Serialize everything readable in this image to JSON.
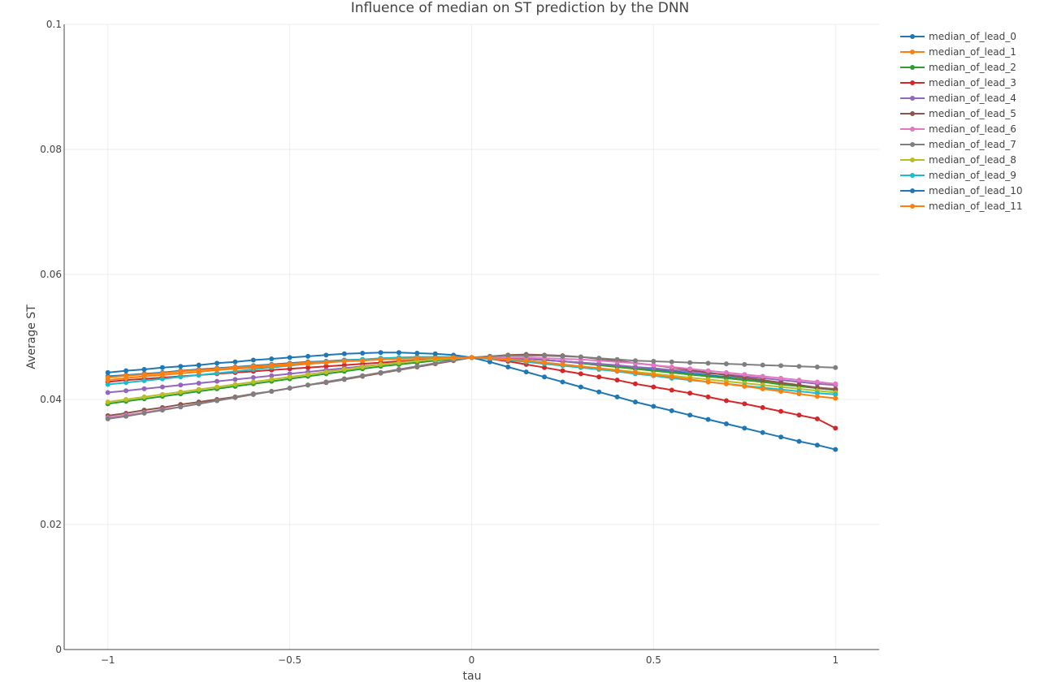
{
  "chart_data": {
    "type": "line",
    "title": "Influence of median on ST prediction by the DNN",
    "xlabel": "tau",
    "ylabel": "Average ST",
    "xlim": [
      -1.12,
      1.12
    ],
    "ylim": [
      0,
      0.1
    ],
    "xticks": [
      -1,
      -0.5,
      0,
      0.5,
      1
    ],
    "xtick_labels": [
      "−1",
      "−0.5",
      "0",
      "0.5",
      "1"
    ],
    "yticks": [
      0,
      0.02,
      0.04,
      0.06,
      0.08,
      0.1
    ],
    "ytick_labels": [
      "0",
      "0.02",
      "0.04",
      "0.06",
      "0.08",
      "0.1"
    ],
    "grid": true,
    "legend": "top-right",
    "x": [
      -1,
      -0.95,
      -0.9,
      -0.85,
      -0.8,
      -0.75,
      -0.7,
      -0.65,
      -0.6,
      -0.55,
      -0.5,
      -0.45,
      -0.4,
      -0.35,
      -0.3,
      -0.25,
      -0.2,
      -0.15,
      -0.1,
      -0.05,
      0,
      0.05,
      0.1,
      0.15,
      0.2,
      0.25,
      0.3,
      0.35,
      0.4,
      0.45,
      0.5,
      0.55,
      0.6,
      0.65,
      0.7,
      0.75,
      0.8,
      0.85,
      0.9,
      0.95,
      1
    ],
    "series": [
      {
        "name": "median_of_lead_0",
        "color": "#1f77b4",
        "values": [
          0.0437,
          0.0439,
          0.0441,
          0.0443,
          0.0446,
          0.0448,
          0.045,
          0.0452,
          0.0454,
          0.0456,
          0.0458,
          0.046,
          0.0461,
          0.0463,
          0.0464,
          0.0465,
          0.0466,
          0.0467,
          0.0467,
          0.0467,
          0.0467,
          0.0467,
          0.0466,
          0.0465,
          0.0463,
          0.0461,
          0.0459,
          0.0457,
          0.0454,
          0.0451,
          0.0448,
          0.0445,
          0.0442,
          0.0439,
          0.0436,
          0.0432,
          0.0429,
          0.0425,
          0.0422,
          0.0418,
          0.0415
        ]
      },
      {
        "name": "median_of_lead_1",
        "color": "#ff7f0e",
        "values": [
          0.0435,
          0.0438,
          0.044,
          0.0442,
          0.0445,
          0.0447,
          0.0449,
          0.0451,
          0.0453,
          0.0455,
          0.0457,
          0.0459,
          0.046,
          0.0462,
          0.0463,
          0.0464,
          0.0465,
          0.0466,
          0.0466,
          0.0467,
          0.0467,
          0.0467,
          0.0466,
          0.0465,
          0.0463,
          0.0461,
          0.0458,
          0.0455,
          0.0452,
          0.0449,
          0.0446,
          0.0443,
          0.044,
          0.0437,
          0.0434,
          0.0431,
          0.0428,
          0.0425,
          0.0422,
          0.0419,
          0.0417
        ]
      },
      {
        "name": "median_of_lead_2",
        "color": "#2ca02c",
        "values": [
          0.0393,
          0.0397,
          0.0401,
          0.0405,
          0.0409,
          0.0413,
          0.0417,
          0.0421,
          0.0425,
          0.0429,
          0.0433,
          0.0437,
          0.0441,
          0.0445,
          0.0449,
          0.0453,
          0.0456,
          0.0459,
          0.0462,
          0.0465,
          0.0467,
          0.0467,
          0.0466,
          0.0465,
          0.0463,
          0.0461,
          0.0458,
          0.0455,
          0.0452,
          0.0449,
          0.0446,
          0.0443,
          0.044,
          0.0437,
          0.0434,
          0.0431,
          0.0428,
          0.0424,
          0.0421,
          0.0418,
          0.0415
        ]
      },
      {
        "name": "median_of_lead_3",
        "color": "#d62728",
        "values": [
          0.0428,
          0.0431,
          0.0433,
          0.0435,
          0.0437,
          0.0439,
          0.0441,
          0.0443,
          0.0445,
          0.0447,
          0.0449,
          0.0451,
          0.0453,
          0.0455,
          0.0457,
          0.0459,
          0.0461,
          0.0463,
          0.0465,
          0.0466,
          0.0467,
          0.0465,
          0.0461,
          0.0456,
          0.0451,
          0.0446,
          0.0441,
          0.0436,
          0.0431,
          0.0425,
          0.042,
          0.0415,
          0.041,
          0.0404,
          0.0398,
          0.0393,
          0.0387,
          0.0381,
          0.0375,
          0.0369,
          0.0354
        ]
      },
      {
        "name": "median_of_lead_4",
        "color": "#9467bd",
        "values": [
          0.0411,
          0.0414,
          0.0417,
          0.042,
          0.0423,
          0.0426,
          0.0429,
          0.0432,
          0.0435,
          0.0438,
          0.0441,
          0.0444,
          0.0447,
          0.045,
          0.0453,
          0.0456,
          0.0459,
          0.0462,
          0.0464,
          0.0466,
          0.0467,
          0.0467,
          0.0466,
          0.0465,
          0.0463,
          0.0461,
          0.0459,
          0.0457,
          0.0455,
          0.0452,
          0.045,
          0.0447,
          0.0445,
          0.0442,
          0.044,
          0.0437,
          0.0434,
          0.0431,
          0.0428,
          0.0425,
          0.0423
        ]
      },
      {
        "name": "median_of_lead_5",
        "color": "#8c564b",
        "values": [
          0.0374,
          0.0378,
          0.0383,
          0.0387,
          0.0392,
          0.0396,
          0.04,
          0.0404,
          0.0409,
          0.0413,
          0.0418,
          0.0423,
          0.0427,
          0.0432,
          0.0437,
          0.0442,
          0.0447,
          0.0452,
          0.0457,
          0.0462,
          0.0467,
          0.0469,
          0.0471,
          0.0472,
          0.0471,
          0.047,
          0.0468,
          0.0465,
          0.0462,
          0.0458,
          0.0455,
          0.0451,
          0.0447,
          0.0443,
          0.0439,
          0.0435,
          0.0431,
          0.0427,
          0.0423,
          0.0419,
          0.0416
        ]
      },
      {
        "name": "median_of_lead_6",
        "color": "#e377c2",
        "values": [
          0.0371,
          0.0375,
          0.0379,
          0.0384,
          0.0388,
          0.0393,
          0.0398,
          0.0403,
          0.0408,
          0.0413,
          0.0418,
          0.0423,
          0.0428,
          0.0433,
          0.0438,
          0.0443,
          0.0448,
          0.0453,
          0.0458,
          0.0463,
          0.0467,
          0.0467,
          0.0467,
          0.0467,
          0.0466,
          0.0465,
          0.0464,
          0.0462,
          0.046,
          0.0458,
          0.0455,
          0.0452,
          0.0449,
          0.0446,
          0.0443,
          0.044,
          0.0437,
          0.0434,
          0.0431,
          0.0428,
          0.0425
        ]
      },
      {
        "name": "median_of_lead_7",
        "color": "#7f7f7f",
        "values": [
          0.0369,
          0.0373,
          0.0378,
          0.0383,
          0.0388,
          0.0393,
          0.0398,
          0.0403,
          0.0408,
          0.0413,
          0.0418,
          0.0423,
          0.0428,
          0.0433,
          0.0438,
          0.0443,
          0.0448,
          0.0453,
          0.0458,
          0.0463,
          0.0467,
          0.0469,
          0.047,
          0.047,
          0.047,
          0.0469,
          0.0468,
          0.0466,
          0.0464,
          0.0462,
          0.0461,
          0.046,
          0.0459,
          0.0458,
          0.0457,
          0.0456,
          0.0455,
          0.0454,
          0.0453,
          0.0452,
          0.0451
        ]
      },
      {
        "name": "median_of_lead_8",
        "color": "#bcbd22",
        "values": [
          0.0396,
          0.04,
          0.0404,
          0.0408,
          0.0412,
          0.0416,
          0.042,
          0.0424,
          0.0428,
          0.0432,
          0.0436,
          0.044,
          0.0444,
          0.0448,
          0.0452,
          0.0456,
          0.0459,
          0.0462,
          0.0464,
          0.0466,
          0.0467,
          0.0466,
          0.0464,
          0.0462,
          0.0459,
          0.0456,
          0.0453,
          0.045,
          0.0447,
          0.0444,
          0.0441,
          0.0438,
          0.0435,
          0.0432,
          0.0429,
          0.0426,
          0.0423,
          0.042,
          0.0417,
          0.0414,
          0.0411
        ]
      },
      {
        "name": "median_of_lead_9",
        "color": "#17becf",
        "values": [
          0.0424,
          0.0427,
          0.043,
          0.0433,
          0.0436,
          0.0439,
          0.0442,
          0.0445,
          0.0448,
          0.0451,
          0.0454,
          0.0457,
          0.0459,
          0.0462,
          0.0464,
          0.0466,
          0.0467,
          0.0468,
          0.0468,
          0.0468,
          0.0467,
          0.0465,
          0.0463,
          0.046,
          0.0457,
          0.0454,
          0.0451,
          0.0448,
          0.0445,
          0.0441,
          0.0438,
          0.0434,
          0.0431,
          0.0428,
          0.0425,
          0.0422,
          0.0419,
          0.0416,
          0.0413,
          0.041,
          0.0408
        ]
      },
      {
        "name": "median_of_lead_10",
        "color": "#1f77b4",
        "values": [
          0.0443,
          0.0446,
          0.0448,
          0.0451,
          0.0453,
          0.0455,
          0.0458,
          0.046,
          0.0463,
          0.0465,
          0.0467,
          0.0469,
          0.0471,
          0.0473,
          0.0474,
          0.0475,
          0.0475,
          0.0474,
          0.0473,
          0.0471,
          0.0467,
          0.046,
          0.0452,
          0.0444,
          0.0436,
          0.0428,
          0.042,
          0.0412,
          0.0404,
          0.0396,
          0.0389,
          0.0382,
          0.0375,
          0.0368,
          0.0361,
          0.0354,
          0.0347,
          0.034,
          0.0333,
          0.0327,
          0.032
        ]
      },
      {
        "name": "median_of_lead_11",
        "color": "#ff7f0e",
        "values": [
          0.0431,
          0.0434,
          0.0437,
          0.0439,
          0.0442,
          0.0444,
          0.0447,
          0.0449,
          0.0451,
          0.0453,
          0.0455,
          0.0457,
          0.0459,
          0.0461,
          0.0462,
          0.0464,
          0.0465,
          0.0466,
          0.0466,
          0.0467,
          0.0467,
          0.0466,
          0.0464,
          0.0462,
          0.0459,
          0.0456,
          0.0453,
          0.045,
          0.0446,
          0.0443,
          0.0439,
          0.0436,
          0.0432,
          0.0428,
          0.0425,
          0.0421,
          0.0417,
          0.0413,
          0.0409,
          0.0405,
          0.0402
        ]
      }
    ]
  }
}
